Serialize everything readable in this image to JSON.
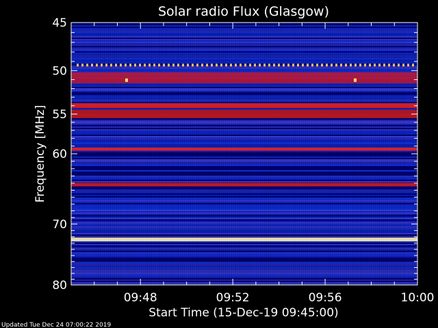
{
  "chart_data": {
    "type": "heatmap",
    "title": "Solar radio Flux (Glasgow)",
    "xlabel": "Start Time (15-Dec-19 09:45:00)",
    "ylabel": "Frequency [MHz]",
    "x_range": [
      "09:45:00",
      "10:00:00"
    ],
    "y_range": [
      45,
      80
    ],
    "y_scale": "log",
    "x_ticks": [
      "09:48",
      "09:52",
      "09:56",
      "10:00"
    ],
    "x_tick_minutes": [
      48,
      52,
      56,
      60
    ],
    "y_ticks": [
      45,
      50,
      55,
      60,
      70,
      80
    ],
    "background_colors": [
      "#00006e",
      "#1030d8",
      "#3a3ad0"
    ],
    "bands": [
      {
        "freq": 49.4,
        "color": "#ffc060",
        "style": "dotted"
      },
      {
        "freq": 50.8,
        "color": "#b81a3a",
        "width_mhz": 1.2
      },
      {
        "freq": 54.0,
        "color": "#e02020",
        "width_mhz": 0.6
      },
      {
        "freq": 55.0,
        "color": "#c01818",
        "width_mhz": 1.0
      },
      {
        "freq": 59.4,
        "color": "#f02018",
        "width_mhz": 0.4
      },
      {
        "freq": 64.2,
        "color": "#d01820",
        "width_mhz": 0.5
      },
      {
        "freq": 72.4,
        "color": "#fff4b0",
        "width_mhz": 0.6
      }
    ],
    "spots": [
      {
        "minute": 47.4,
        "freq": 51.1,
        "color": "#ffe070"
      },
      {
        "minute": 57.3,
        "freq": 51.1,
        "color": "#ffe070"
      }
    ]
  },
  "footer": "Updated Tue Dec 24 07:00:22 2019"
}
